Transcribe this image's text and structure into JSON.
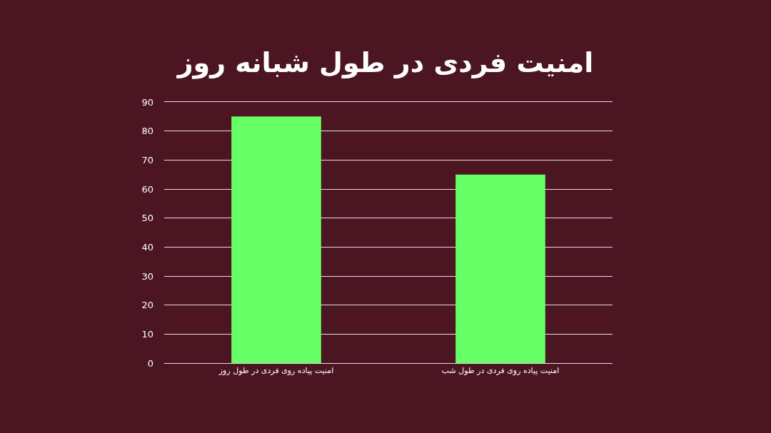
{
  "chart_data": {
    "type": "bar",
    "title": "امنیت فردی در طول شبانه روز",
    "categories": [
      "امنیت پیاده روی فردی در طول روز",
      "امنیت پیاده روی فردی در طول شب"
    ],
    "values": [
      85,
      65
    ],
    "color": "#66ff66",
    "ylim": [
      0,
      90
    ],
    "yticks": [
      0,
      10,
      20,
      30,
      40,
      50,
      60,
      70,
      80,
      90
    ],
    "grid": "y"
  }
}
